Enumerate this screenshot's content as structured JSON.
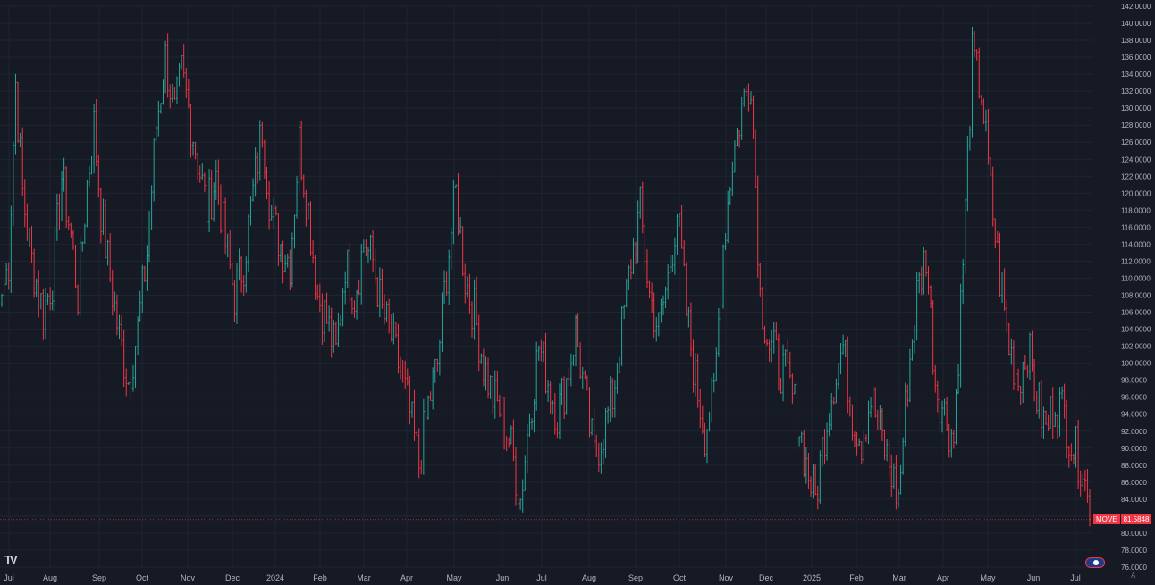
{
  "chart_data": {
    "type": "ohlc",
    "symbol": "MOVE",
    "last_price": "81.5848",
    "colors": {
      "up": "#26a69a",
      "down": "#f23645",
      "background": "#161a25",
      "grid": "#1f2431",
      "text": "#b2b5be"
    },
    "y_axis": {
      "min": 76,
      "max": 142,
      "ticks": [
        "142.0000",
        "140.0000",
        "138.0000",
        "136.0000",
        "134.0000",
        "132.0000",
        "130.0000",
        "128.0000",
        "126.0000",
        "124.0000",
        "122.0000",
        "120.0000",
        "118.0000",
        "116.0000",
        "114.0000",
        "112.0000",
        "110.0000",
        "108.0000",
        "106.0000",
        "104.0000",
        "102.0000",
        "100.0000",
        "98.0000",
        "96.0000",
        "94.0000",
        "92.0000",
        "90.0000",
        "88.0000",
        "86.0000",
        "84.0000",
        "82.0000",
        "80.0000",
        "78.0000",
        "76.0000"
      ],
      "tick_values": [
        142,
        140,
        138,
        136,
        134,
        132,
        130,
        128,
        126,
        124,
        122,
        120,
        118,
        116,
        114,
        112,
        110,
        108,
        106,
        104,
        102,
        100,
        98,
        96,
        94,
        92,
        90,
        88,
        86,
        84,
        82,
        80,
        78,
        76
      ]
    },
    "x_axis": {
      "labels": [
        "Jul",
        "Aug",
        "Sep",
        "Oct",
        "Nov",
        "Dec",
        "2024",
        "Feb",
        "Mar",
        "Apr",
        "May",
        "Jun",
        "Jul",
        "Aug",
        "Sep",
        "Oct",
        "Nov",
        "Dec",
        "2025",
        "Feb",
        "Mar",
        "Apr",
        "May",
        "Jun",
        "Jul"
      ]
    },
    "anchors": [
      [
        0,
        108
      ],
      [
        3,
        112
      ],
      [
        6,
        133
      ],
      [
        9,
        120
      ],
      [
        13,
        112
      ],
      [
        18,
        106
      ],
      [
        22,
        110
      ],
      [
        26,
        122
      ],
      [
        30,
        115
      ],
      [
        33,
        108
      ],
      [
        37,
        121
      ],
      [
        40,
        128
      ],
      [
        43,
        118
      ],
      [
        47,
        110
      ],
      [
        51,
        103
      ],
      [
        55,
        98
      ],
      [
        59,
        104
      ],
      [
        63,
        113
      ],
      [
        67,
        128
      ],
      [
        71,
        136
      ],
      [
        75,
        129
      ],
      [
        78,
        134
      ],
      [
        81,
        130
      ],
      [
        85,
        124
      ],
      [
        89,
        118
      ],
      [
        93,
        122
      ],
      [
        97,
        114
      ],
      [
        101,
        108
      ],
      [
        105,
        112
      ],
      [
        109,
        120
      ],
      [
        113,
        128
      ],
      [
        117,
        117
      ],
      [
        121,
        114
      ],
      [
        125,
        112
      ],
      [
        129,
        126
      ],
      [
        133,
        118
      ],
      [
        137,
        108
      ],
      [
        141,
        105
      ],
      [
        145,
        101
      ],
      [
        149,
        112
      ],
      [
        153,
        108
      ],
      [
        157,
        114
      ],
      [
        161,
        112
      ],
      [
        165,
        106
      ],
      [
        169,
        103
      ],
      [
        173,
        99
      ],
      [
        177,
        94
      ],
      [
        181,
        88
      ],
      [
        185,
        95
      ],
      [
        189,
        100
      ],
      [
        193,
        111
      ],
      [
        197,
        120
      ],
      [
        201,
        110
      ],
      [
        205,
        106
      ],
      [
        209,
        100
      ],
      [
        213,
        96
      ],
      [
        217,
        94
      ],
      [
        221,
        90
      ],
      [
        225,
        84
      ],
      [
        229,
        94
      ],
      [
        233,
        102
      ],
      [
        237,
        98
      ],
      [
        241,
        94
      ],
      [
        245,
        98
      ],
      [
        249,
        104
      ],
      [
        253,
        96
      ],
      [
        257,
        89
      ],
      [
        261,
        92
      ],
      [
        265,
        96
      ],
      [
        269,
        104
      ],
      [
        273,
        112
      ],
      [
        277,
        118
      ],
      [
        281,
        108
      ],
      [
        285,
        104
      ],
      [
        289,
        110
      ],
      [
        293,
        118
      ],
      [
        297,
        106
      ],
      [
        301,
        98
      ],
      [
        305,
        92
      ],
      [
        309,
        96
      ],
      [
        313,
        114
      ],
      [
        317,
        124
      ],
      [
        321,
        130
      ],
      [
        325,
        134
      ],
      [
        329,
        108
      ],
      [
        333,
        102
      ],
      [
        337,
        100
      ],
      [
        341,
        98
      ],
      [
        345,
        94
      ],
      [
        349,
        88
      ],
      [
        353,
        84
      ],
      [
        357,
        92
      ],
      [
        361,
        98
      ],
      [
        365,
        102
      ],
      [
        369,
        94
      ],
      [
        373,
        91
      ],
      [
        377,
        96
      ],
      [
        381,
        92
      ],
      [
        385,
        88
      ],
      [
        389,
        84
      ],
      [
        393,
        98
      ],
      [
        397,
        108
      ],
      [
        401,
        113
      ],
      [
        405,
        98
      ],
      [
        409,
        94
      ],
      [
        413,
        91
      ],
      [
        417,
        112
      ],
      [
        421,
        136
      ],
      [
        425,
        132
      ],
      [
        429,
        120
      ],
      [
        433,
        110
      ],
      [
        437,
        102
      ],
      [
        441,
        98
      ],
      [
        445,
        102
      ],
      [
        449,
        96
      ],
      [
        453,
        92
      ],
      [
        457,
        96
      ],
      [
        461,
        94
      ],
      [
        465,
        90
      ],
      [
        469,
        88
      ],
      [
        472,
        81.6
      ]
    ]
  }
}
